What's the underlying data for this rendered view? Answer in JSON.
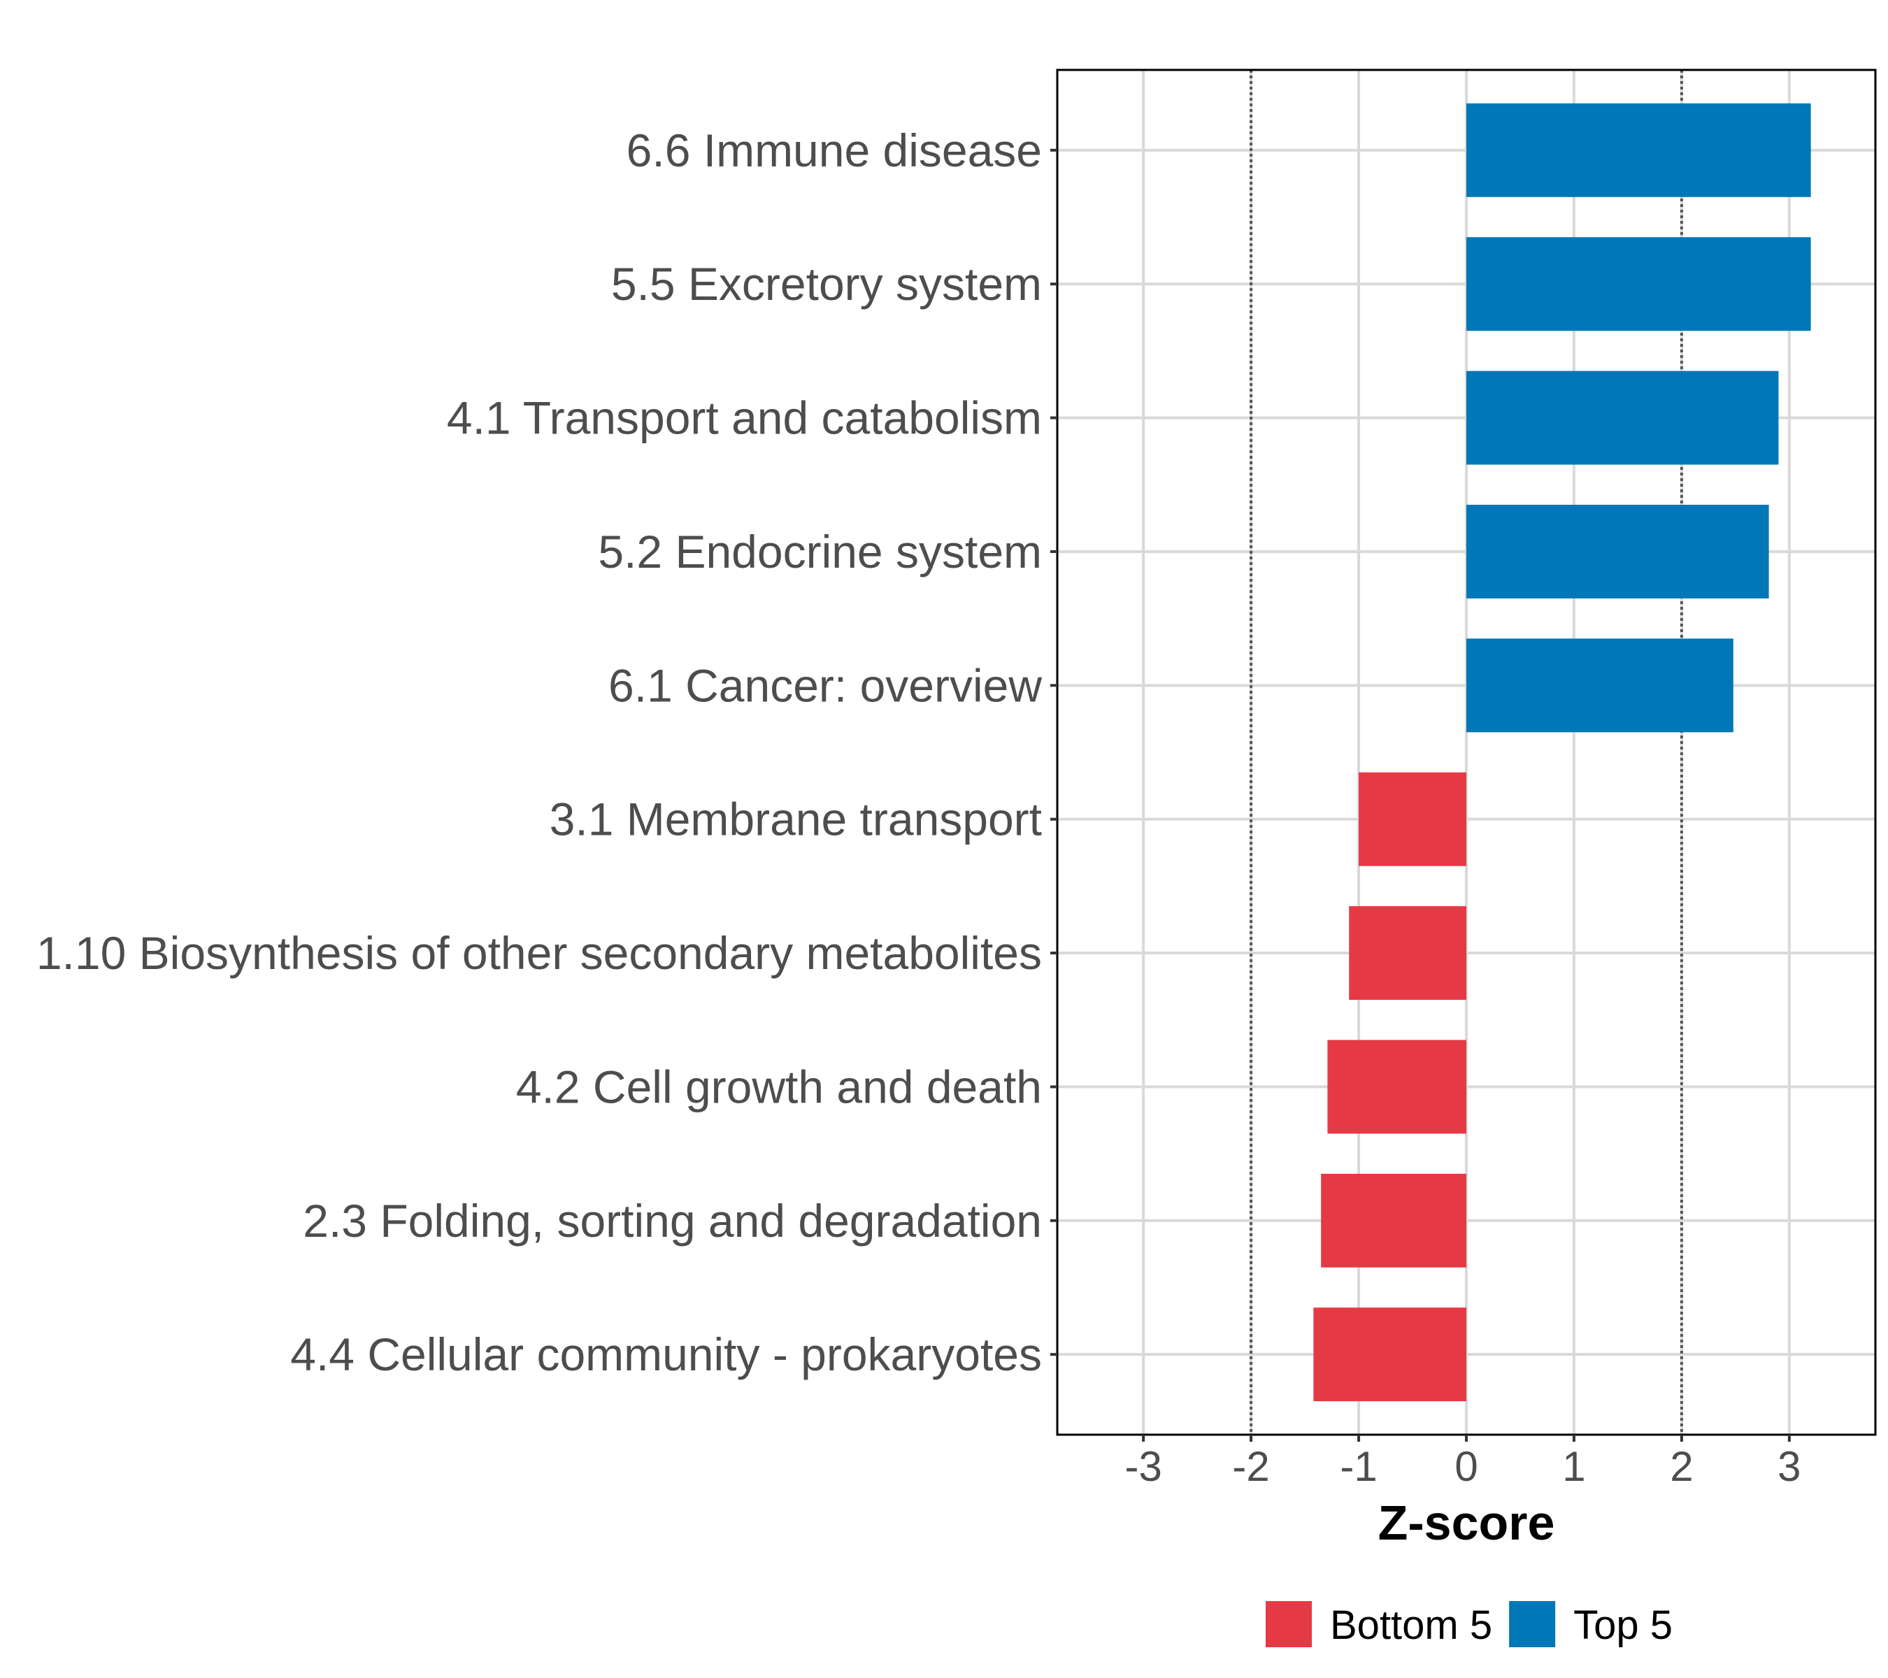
{
  "chart_data": {
    "type": "bar",
    "orientation": "horizontal",
    "title": "",
    "xlabel": "Z-score",
    "ylabel": "",
    "xlim": [
      -3.8,
      3.8
    ],
    "xticks": [
      -3,
      -2,
      -1,
      0,
      1,
      2,
      3
    ],
    "reference_lines": [
      -2,
      2
    ],
    "grid": true,
    "legend_position": "bottom",
    "categories": [
      "6.6 Immune disease",
      "5.5 Excretory system",
      "4.1 Transport and catabolism",
      "5.2 Endocrine system",
      "6.1 Cancer: overview",
      "3.1 Membrane transport",
      "1.10 Biosynthesis of other secondary metabolites",
      "4.2 Cell growth and death",
      "2.3 Folding, sorting and degradation",
      "4.4 Cellular community - prokaryotes"
    ],
    "values": [
      3.2,
      3.2,
      2.9,
      2.81,
      2.48,
      -1.0,
      -1.09,
      -1.29,
      -1.35,
      -1.42
    ],
    "groups": [
      "Top 5",
      "Top 5",
      "Top 5",
      "Top 5",
      "Top 5",
      "Bottom 5",
      "Bottom 5",
      "Bottom 5",
      "Bottom 5",
      "Bottom 5"
    ],
    "legend": [
      {
        "name": "Bottom 5",
        "color": "#e63946"
      },
      {
        "name": "Top 5",
        "color": "#0077b6"
      }
    ]
  },
  "colors": {
    "top": "#0077b6",
    "bottom": "#e63946",
    "grid": "#d9d9d9",
    "refline": "#555555",
    "axis": "#000000"
  }
}
